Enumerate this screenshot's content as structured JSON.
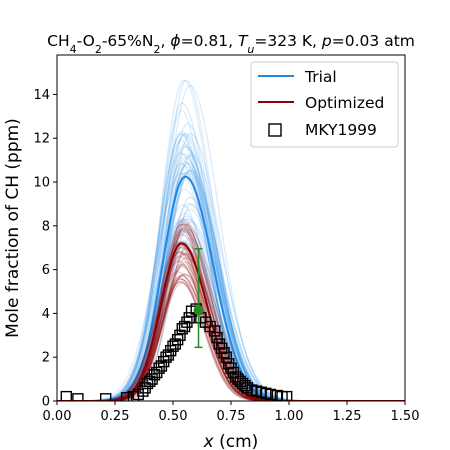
{
  "chart_data": {
    "type": "line",
    "title": "CH₄-O₂-65%N₂, ϕ=0.81, Tᵤ=323 K, p=0.03 atm",
    "xlabel": "x (cm)",
    "ylabel": "Mole fraction of CH (ppm)",
    "xlim": [
      0.0,
      1.5
    ],
    "ylim": [
      0,
      15.8
    ],
    "xticks": [
      "0.00",
      "0.25",
      "0.50",
      "0.75",
      "1.00",
      "1.25",
      "1.50"
    ],
    "yticks": [
      "0",
      "2",
      "4",
      "6",
      "8",
      "10",
      "12",
      "14"
    ],
    "legend_position": "top-right",
    "grid": false,
    "series": [
      {
        "name": "Trial",
        "kind": "ensemble",
        "color": "#1e88e5",
        "mean": {
          "peak_ppm": 10.25,
          "peak_x": 0.553,
          "width_left": 0.098,
          "width_right": 0.12
        },
        "peak_range_ppm": [
          6.8,
          15.0
        ],
        "peak_x_range": [
          0.53,
          0.58
        ]
      },
      {
        "name": "Optimized",
        "kind": "ensemble",
        "color": "#8b0000",
        "mean": {
          "peak_ppm": 7.2,
          "peak_x": 0.537,
          "width_left": 0.09,
          "width_right": 0.11
        },
        "peak_range_ppm": [
          5.4,
          8.4
        ],
        "peak_x_range": [
          0.52,
          0.56
        ]
      },
      {
        "name": "MKY1999",
        "kind": "markers",
        "x": [
          0.04,
          0.09,
          0.21,
          0.3,
          0.33,
          0.35,
          0.37,
          0.38,
          0.39,
          0.4,
          0.41,
          0.42,
          0.43,
          0.44,
          0.45,
          0.46,
          0.47,
          0.48,
          0.49,
          0.5,
          0.51,
          0.52,
          0.53,
          0.54,
          0.55,
          0.56,
          0.57,
          0.58,
          0.6,
          0.62,
          0.64,
          0.66,
          0.68,
          0.69,
          0.7,
          0.71,
          0.72,
          0.73,
          0.74,
          0.75,
          0.76,
          0.77,
          0.78,
          0.79,
          0.8,
          0.81,
          0.82,
          0.84,
          0.86,
          0.88,
          0.9,
          0.92,
          0.95,
          0.97,
          0.99
        ],
        "y": [
          0.2,
          0.1,
          0.1,
          0.15,
          0.2,
          0.3,
          0.45,
          0.6,
          0.8,
          0.9,
          1.0,
          1.2,
          1.3,
          1.5,
          1.6,
          1.8,
          2.0,
          2.1,
          2.3,
          2.5,
          2.6,
          2.8,
          3.0,
          3.3,
          3.4,
          3.6,
          3.8,
          4.1,
          4.2,
          3.8,
          3.6,
          3.4,
          3.2,
          2.9,
          2.6,
          2.4,
          2.2,
          2.0,
          1.7,
          1.5,
          1.3,
          1.1,
          1.0,
          0.9,
          0.8,
          0.7,
          0.6,
          0.5,
          0.45,
          0.4,
          0.35,
          0.3,
          0.25,
          0.2,
          0.2
        ]
      }
    ],
    "errorbar": {
      "x": 0.61,
      "y": 4.15,
      "lower": 2.45,
      "upper": 6.95,
      "color": "#228b22"
    }
  }
}
